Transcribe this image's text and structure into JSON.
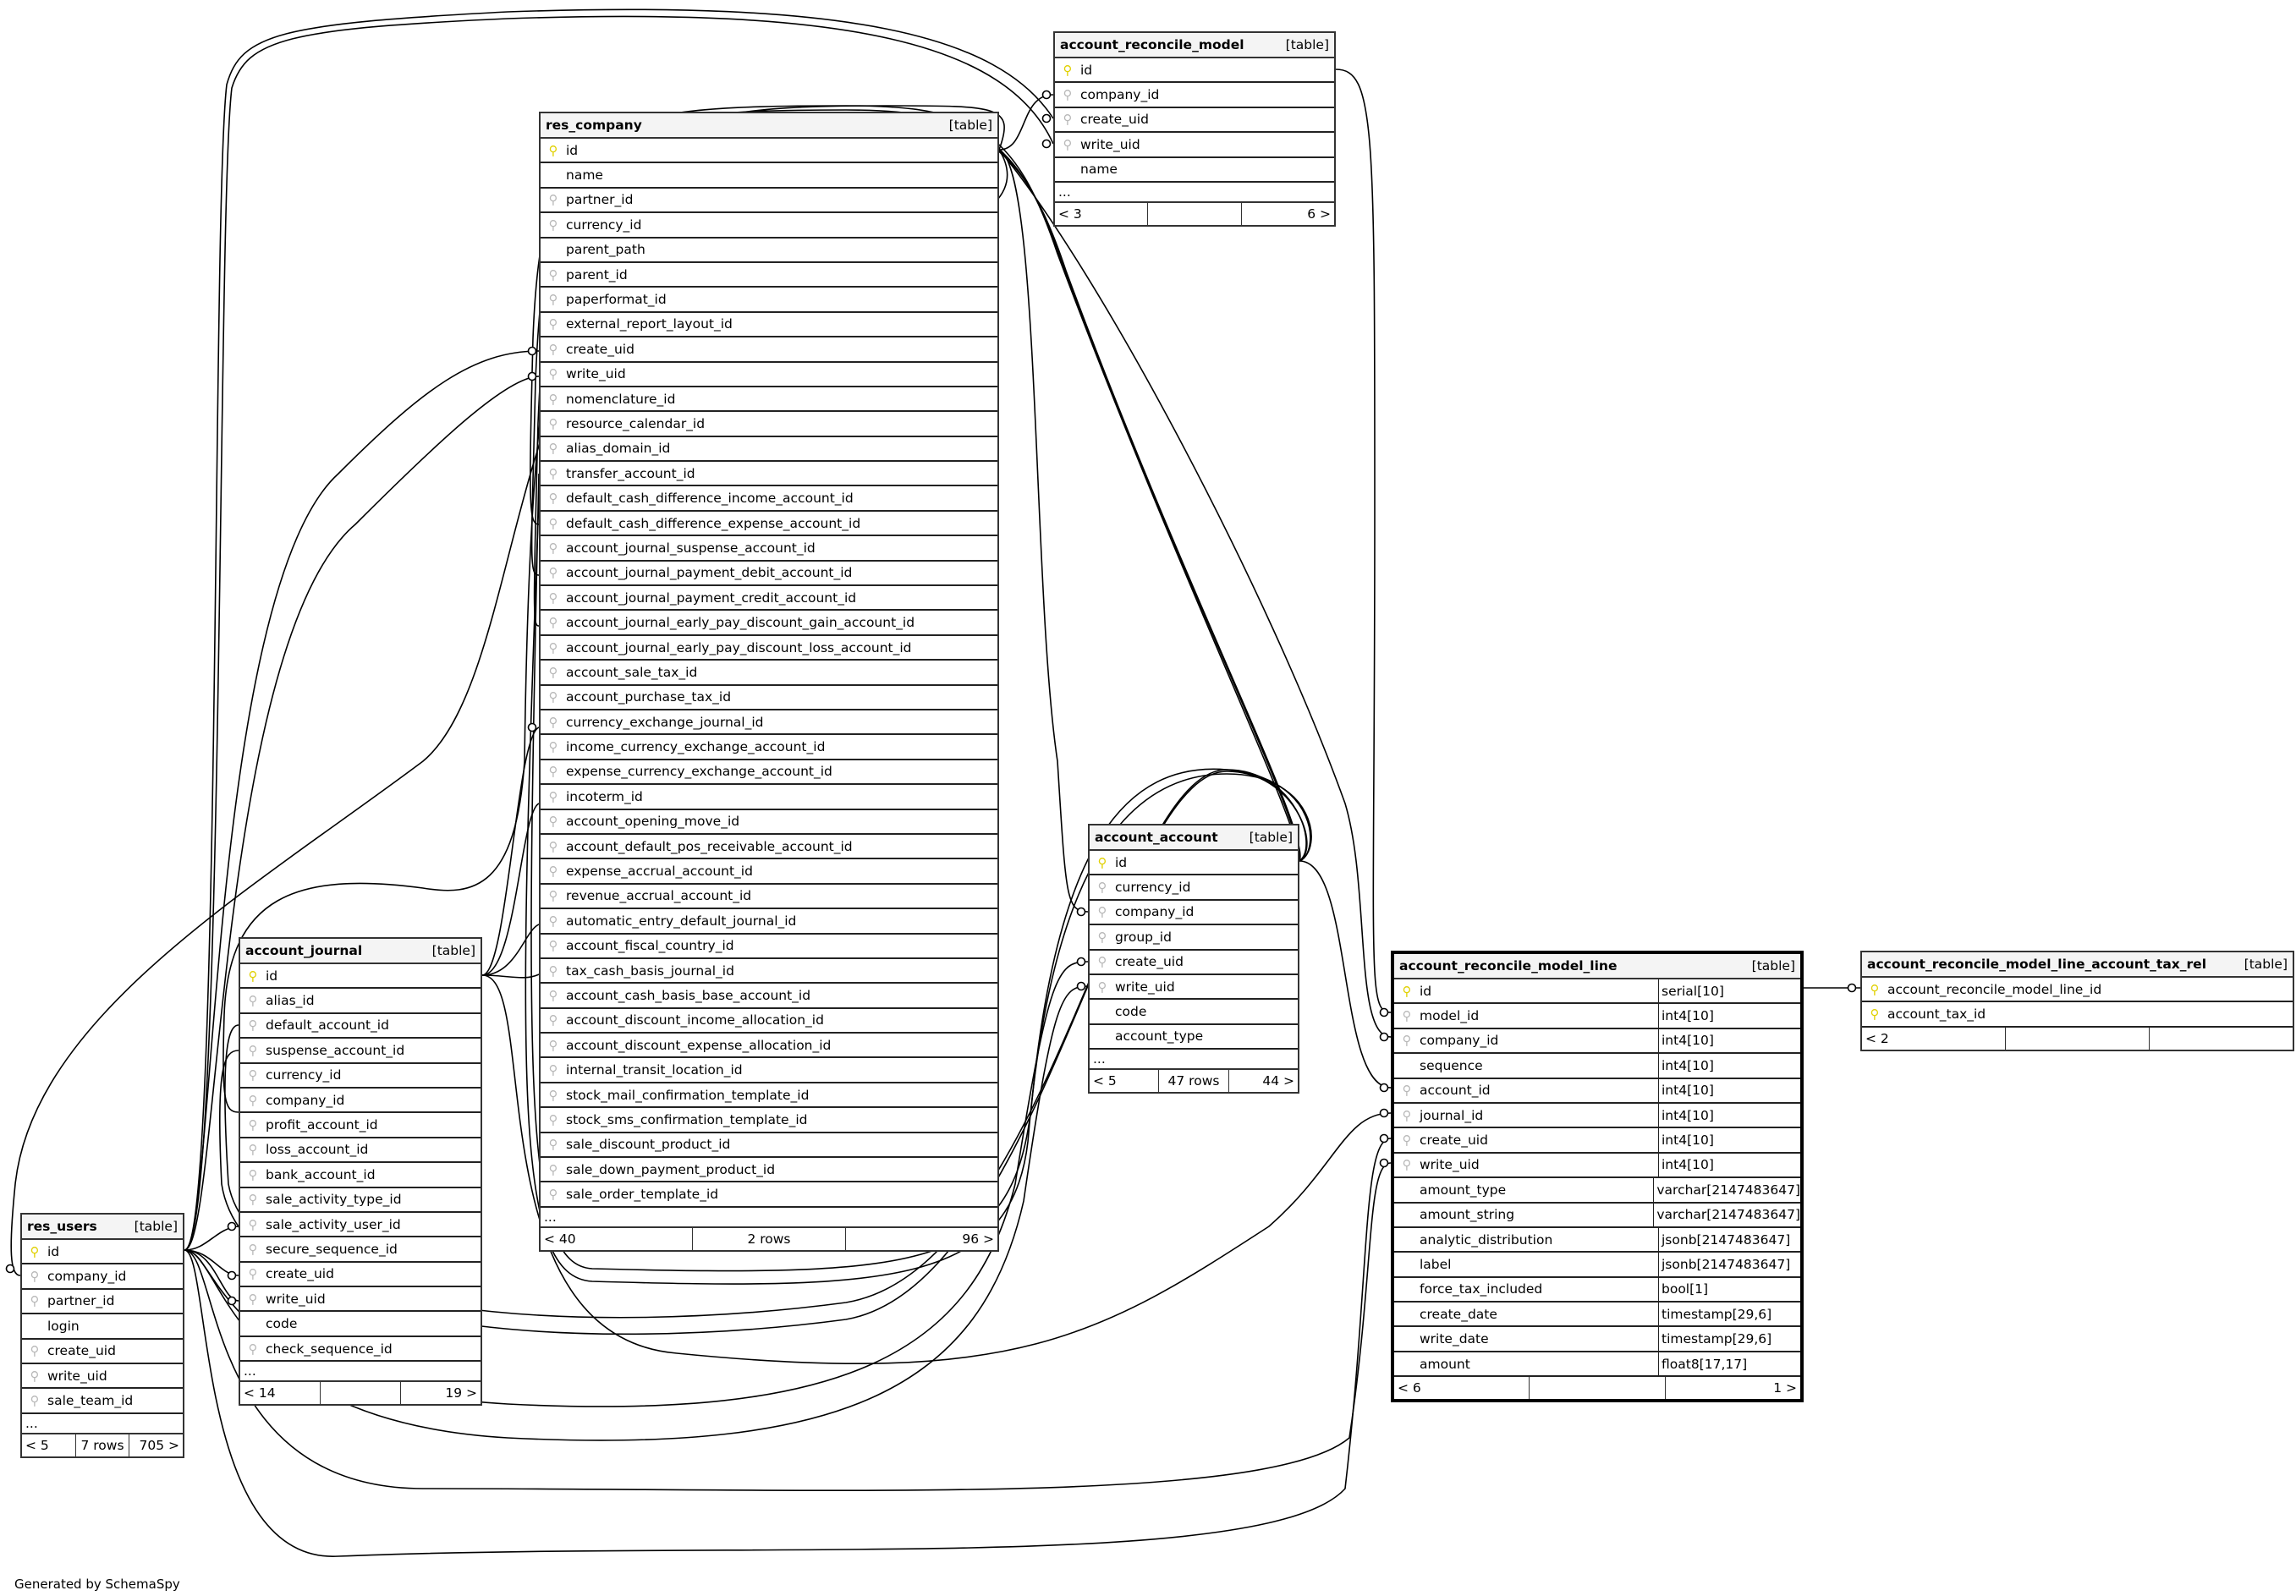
{
  "footer_note": "Generated by SchemaSpy",
  "colors": {
    "primary_key": "#e0d000",
    "foreign_key": "#b8b8b8",
    "header_bg": "#f4f4f4"
  },
  "tables": [
    {
      "id": "res_company",
      "name": "res_company",
      "kind": "[table]",
      "columns": [
        [
          "id",
          "pk"
        ],
        [
          "name",
          ""
        ],
        [
          "partner_id",
          "fk"
        ],
        [
          "currency_id",
          "fk"
        ],
        [
          "parent_path",
          ""
        ],
        [
          "parent_id",
          "fk"
        ],
        [
          "paperformat_id",
          "fk"
        ],
        [
          "external_report_layout_id",
          "fk"
        ],
        [
          "create_uid",
          "fk"
        ],
        [
          "write_uid",
          "fk"
        ],
        [
          "nomenclature_id",
          "fk"
        ],
        [
          "resource_calendar_id",
          "fk"
        ],
        [
          "alias_domain_id",
          "fk"
        ],
        [
          "transfer_account_id",
          "fk"
        ],
        [
          "default_cash_difference_income_account_id",
          "fk"
        ],
        [
          "default_cash_difference_expense_account_id",
          "fk"
        ],
        [
          "account_journal_suspense_account_id",
          "fk"
        ],
        [
          "account_journal_payment_debit_account_id",
          "fk"
        ],
        [
          "account_journal_payment_credit_account_id",
          "fk"
        ],
        [
          "account_journal_early_pay_discount_gain_account_id",
          "fk"
        ],
        [
          "account_journal_early_pay_discount_loss_account_id",
          "fk"
        ],
        [
          "account_sale_tax_id",
          "fk"
        ],
        [
          "account_purchase_tax_id",
          "fk"
        ],
        [
          "currency_exchange_journal_id",
          "fk"
        ],
        [
          "income_currency_exchange_account_id",
          "fk"
        ],
        [
          "expense_currency_exchange_account_id",
          "fk"
        ],
        [
          "incoterm_id",
          "fk"
        ],
        [
          "account_opening_move_id",
          "fk"
        ],
        [
          "account_default_pos_receivable_account_id",
          "fk"
        ],
        [
          "expense_accrual_account_id",
          "fk"
        ],
        [
          "revenue_accrual_account_id",
          "fk"
        ],
        [
          "automatic_entry_default_journal_id",
          "fk"
        ],
        [
          "account_fiscal_country_id",
          "fk"
        ],
        [
          "tax_cash_basis_journal_id",
          "fk"
        ],
        [
          "account_cash_basis_base_account_id",
          "fk"
        ],
        [
          "account_discount_income_allocation_id",
          "fk"
        ],
        [
          "account_discount_expense_allocation_id",
          "fk"
        ],
        [
          "internal_transit_location_id",
          "fk"
        ],
        [
          "stock_mail_confirmation_template_id",
          "fk"
        ],
        [
          "stock_sms_confirmation_template_id",
          "fk"
        ],
        [
          "sale_discount_product_id",
          "fk"
        ],
        [
          "sale_down_payment_product_id",
          "fk"
        ],
        [
          "sale_order_template_id",
          "fk"
        ]
      ],
      "more": "...",
      "footer": [
        "< 40",
        "2 rows",
        "96 >"
      ]
    },
    {
      "id": "account_reconcile_model",
      "name": "account_reconcile_model",
      "kind": "[table]",
      "columns": [
        [
          "id",
          "pk"
        ],
        [
          "company_id",
          "fk"
        ],
        [
          "create_uid",
          "fk"
        ],
        [
          "write_uid",
          "fk"
        ],
        [
          "name",
          ""
        ]
      ],
      "more": "...",
      "footer": [
        "< 3",
        "",
        "6 >"
      ]
    },
    {
      "id": "account_account",
      "name": "account_account",
      "kind": "[table]",
      "columns": [
        [
          "id",
          "pk"
        ],
        [
          "currency_id",
          "fk"
        ],
        [
          "company_id",
          "fk"
        ],
        [
          "group_id",
          "fk"
        ],
        [
          "create_uid",
          "fk"
        ],
        [
          "write_uid",
          "fk"
        ],
        [
          "code",
          ""
        ],
        [
          "account_type",
          ""
        ]
      ],
      "more": "...",
      "footer": [
        "< 5",
        "47 rows",
        "44 >"
      ]
    },
    {
      "id": "account_reconcile_model_line",
      "name": "account_reconcile_model_line",
      "kind": "[table]",
      "focus": true,
      "columns": [
        [
          "id",
          "pk",
          "serial[10]"
        ],
        [
          "model_id",
          "fk",
          "int4[10]"
        ],
        [
          "company_id",
          "fk",
          "int4[10]"
        ],
        [
          "sequence",
          "",
          "int4[10]"
        ],
        [
          "account_id",
          "fk",
          "int4[10]"
        ],
        [
          "journal_id",
          "fk",
          "int4[10]"
        ],
        [
          "create_uid",
          "fk",
          "int4[10]"
        ],
        [
          "write_uid",
          "fk",
          "int4[10]"
        ],
        [
          "amount_type",
          "",
          "varchar[2147483647]"
        ],
        [
          "amount_string",
          "",
          "varchar[2147483647]"
        ],
        [
          "analytic_distribution",
          "",
          "jsonb[2147483647]"
        ],
        [
          "label",
          "",
          "jsonb[2147483647]"
        ],
        [
          "force_tax_included",
          "",
          "bool[1]"
        ],
        [
          "create_date",
          "",
          "timestamp[29,6]"
        ],
        [
          "write_date",
          "",
          "timestamp[29,6]"
        ],
        [
          "amount",
          "",
          "float8[17,17]"
        ]
      ],
      "footer": [
        "< 6",
        "",
        "1 >"
      ]
    },
    {
      "id": "account_reconcile_model_line_account_tax_rel",
      "name": "account_reconcile_model_line_account_tax_rel",
      "kind": "[table]",
      "columns": [
        [
          "account_reconcile_model_line_id",
          "pk"
        ],
        [
          "account_tax_id",
          "pk"
        ]
      ],
      "footer": [
        "< 2",
        "",
        ""
      ]
    },
    {
      "id": "account_journal",
      "name": "account_journal",
      "kind": "[table]",
      "columns": [
        [
          "id",
          "pk"
        ],
        [
          "alias_id",
          "fk"
        ],
        [
          "default_account_id",
          "fk"
        ],
        [
          "suspense_account_id",
          "fk"
        ],
        [
          "currency_id",
          "fk"
        ],
        [
          "company_id",
          "fk"
        ],
        [
          "profit_account_id",
          "fk"
        ],
        [
          "loss_account_id",
          "fk"
        ],
        [
          "bank_account_id",
          "fk"
        ],
        [
          "sale_activity_type_id",
          "fk"
        ],
        [
          "sale_activity_user_id",
          "fk"
        ],
        [
          "secure_sequence_id",
          "fk"
        ],
        [
          "create_uid",
          "fk"
        ],
        [
          "write_uid",
          "fk"
        ],
        [
          "code",
          ""
        ],
        [
          "check_sequence_id",
          "fk"
        ]
      ],
      "more": "...",
      "footer": [
        "< 14",
        "",
        "19 >"
      ]
    },
    {
      "id": "res_users",
      "name": "res_users",
      "kind": "[table]",
      "columns": [
        [
          "id",
          "pk"
        ],
        [
          "company_id",
          "fk"
        ],
        [
          "partner_id",
          "fk"
        ],
        [
          "login",
          ""
        ],
        [
          "create_uid",
          "fk"
        ],
        [
          "write_uid",
          "fk"
        ],
        [
          "sale_team_id",
          "fk"
        ]
      ],
      "more": "...",
      "footer": [
        "< 5",
        "7 rows",
        "705 >"
      ]
    }
  ]
}
